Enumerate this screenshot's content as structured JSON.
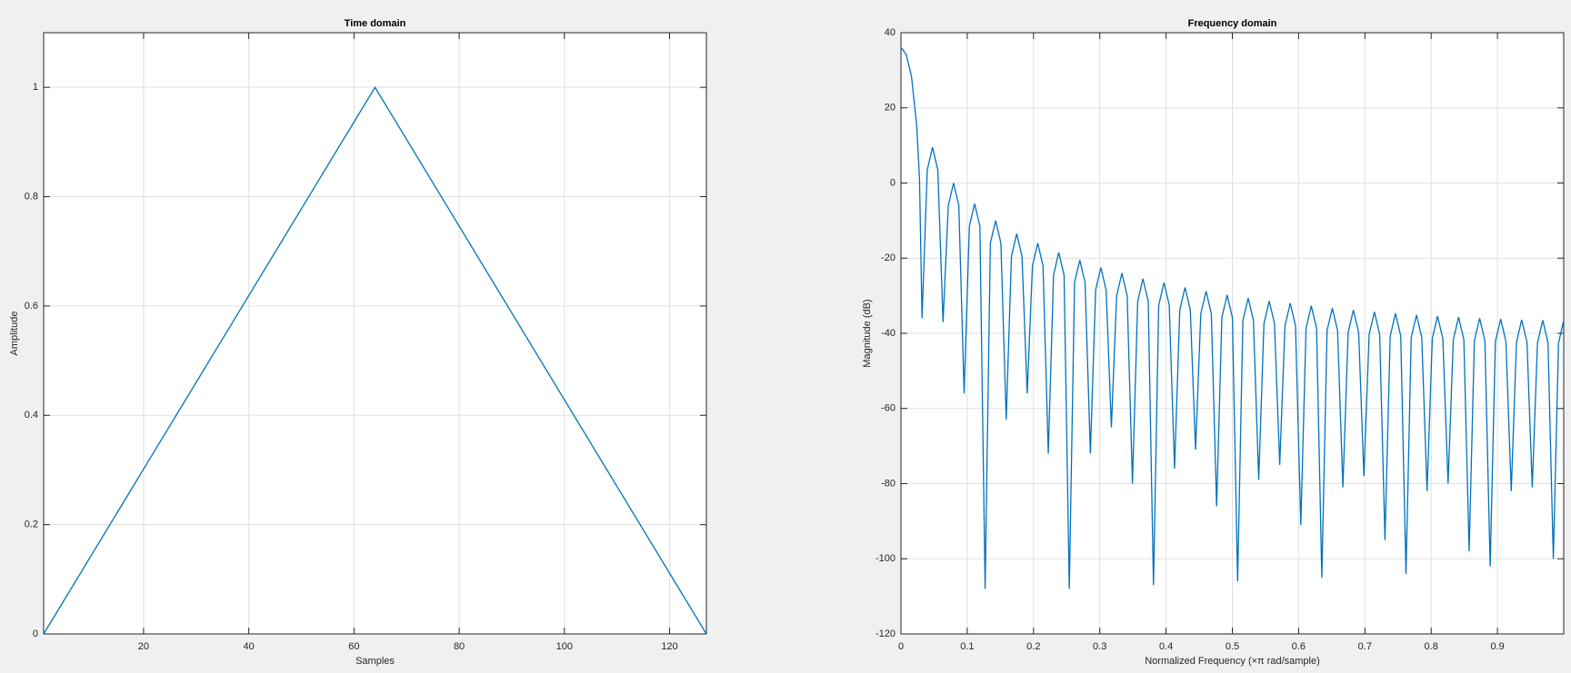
{
  "chart_data": [
    {
      "type": "line",
      "title": "Time domain",
      "xlabel": "Samples",
      "ylabel": "Amplitude",
      "x": [
        1,
        64,
        127
      ],
      "series": [
        {
          "color": "#0072bd",
          "values": [
            0,
            1,
            0
          ]
        }
      ],
      "xlim": [
        1,
        127
      ],
      "xticks": [
        20,
        40,
        60,
        80,
        100,
        120
      ],
      "ylim": [
        0,
        1.1
      ],
      "yticks": [
        0,
        0.2,
        0.4,
        0.6,
        0.8,
        1
      ],
      "grid": true
    },
    {
      "type": "line",
      "title": "Frequency domain",
      "xlabel": "Normalized Frequency  (×π rad/sample)",
      "ylabel": "Magnitude (dB)",
      "x": [
        0,
        0.008,
        0.0159,
        0.0238,
        0.028,
        0.0318,
        0.0397,
        0.0476,
        0.0556,
        0.0635,
        0.0714,
        0.0794,
        0.0873,
        0.0953,
        0.1032,
        0.1111,
        0.1191,
        0.127,
        0.1349,
        0.1429,
        0.1508,
        0.1588,
        0.1667,
        0.1746,
        0.1826,
        0.1905,
        0.1984,
        0.2064,
        0.2143,
        0.2223,
        0.2302,
        0.2381,
        0.2461,
        0.254,
        0.2619,
        0.2699,
        0.2778,
        0.2858,
        0.2937,
        0.3016,
        0.3096,
        0.3175,
        0.3254,
        0.3334,
        0.3413,
        0.3493,
        0.3572,
        0.3651,
        0.3731,
        0.381,
        0.3889,
        0.3969,
        0.4048,
        0.4128,
        0.4207,
        0.4286,
        0.4366,
        0.4445,
        0.4524,
        0.4604,
        0.4683,
        0.4763,
        0.4842,
        0.4921,
        0.5001,
        0.508,
        0.5159,
        0.5239,
        0.5318,
        0.5398,
        0.5477,
        0.5556,
        0.5636,
        0.5715,
        0.5794,
        0.5874,
        0.5953,
        0.6033,
        0.6112,
        0.6191,
        0.6271,
        0.635,
        0.6429,
        0.6509,
        0.6588,
        0.6668,
        0.6747,
        0.6826,
        0.6906,
        0.6985,
        0.7064,
        0.7144,
        0.7223,
        0.7303,
        0.7382,
        0.7461,
        0.7541,
        0.762,
        0.7699,
        0.7779,
        0.7858,
        0.7938,
        0.8017,
        0.8096,
        0.8176,
        0.8255,
        0.8334,
        0.8414,
        0.8493,
        0.8573,
        0.8652,
        0.8731,
        0.8811,
        0.889,
        0.8969,
        0.9049,
        0.9128,
        0.9208,
        0.9287,
        0.9366,
        0.9446,
        0.9525,
        0.9604,
        0.9684,
        0.9763,
        0.9843,
        0.9922,
        1
      ],
      "series": [
        {
          "color": "#0072bd",
          "values": [
            36.1,
            34.2,
            28.3,
            15.2,
            1,
            -36,
            3.5,
            9.5,
            3.5,
            -37,
            -6,
            0,
            -6,
            -56,
            -11.5,
            -5.5,
            -11.5,
            -108,
            -16,
            -10,
            -16,
            -63,
            -19.5,
            -13.5,
            -19.5,
            -56,
            -22,
            -16,
            -22,
            -72,
            -24.5,
            -18.5,
            -24.5,
            -108,
            -26.5,
            -20.5,
            -26.5,
            -72,
            -28.5,
            -22.5,
            -28.5,
            -65,
            -30,
            -24,
            -30,
            -80,
            -31.5,
            -25.5,
            -31.5,
            -107,
            -32.5,
            -26.5,
            -32.5,
            -76,
            -33.8,
            -27.8,
            -33.8,
            -71,
            -34.8,
            -28.8,
            -34.8,
            -86,
            -35.8,
            -29.8,
            -35.8,
            -106,
            -36.6,
            -30.6,
            -36.6,
            -79,
            -37.4,
            -31.4,
            -37.4,
            -75,
            -38,
            -32,
            -38,
            -91,
            -38.7,
            -32.7,
            -38.7,
            -105,
            -39.3,
            -33.3,
            -39.3,
            -81,
            -39.8,
            -33.8,
            -39.8,
            -78,
            -40.3,
            -34.3,
            -40.3,
            -95,
            -40.7,
            -34.7,
            -40.7,
            -104,
            -41.1,
            -35.1,
            -41.1,
            -82,
            -41.4,
            -35.4,
            -41.4,
            -80,
            -41.7,
            -35.7,
            -41.7,
            -98,
            -42,
            -36,
            -42,
            -102,
            -42.2,
            -36.2,
            -42.2,
            -82,
            -42.4,
            -36.4,
            -42.4,
            -81,
            -42.5,
            -36.5,
            -42.5,
            -100,
            -42.6,
            -36.6
          ]
        }
      ],
      "xlim": [
        0,
        1
      ],
      "xticks": [
        0,
        0.1,
        0.2,
        0.3,
        0.4,
        0.5,
        0.6,
        0.7,
        0.8,
        0.9
      ],
      "ylim": [
        -120,
        40
      ],
      "yticks": [
        -120,
        -100,
        -80,
        -60,
        -40,
        -20,
        0,
        20,
        40
      ],
      "grid": true
    }
  ]
}
